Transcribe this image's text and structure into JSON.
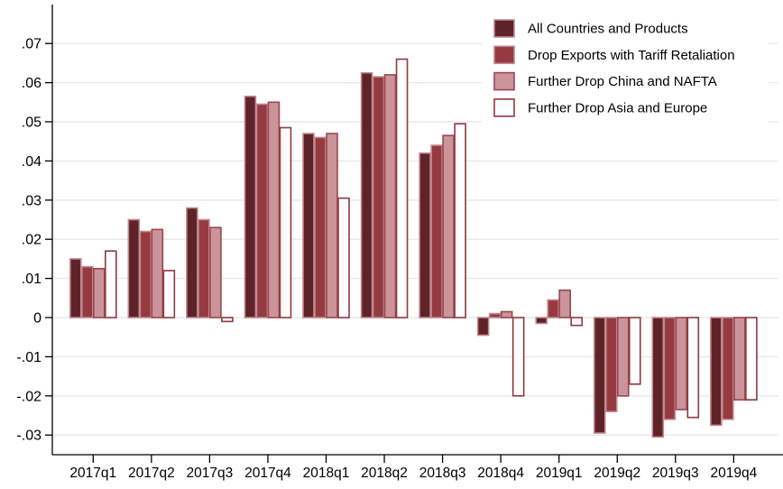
{
  "chart_data": {
    "type": "bar",
    "title": "",
    "xlabel": "",
    "ylabel": "",
    "categories": [
      "2017q1",
      "2017q2",
      "2017q3",
      "2017q4",
      "2018q1",
      "2018q2",
      "2018q3",
      "2018q4",
      "2019q1",
      "2019q2",
      "2019q3",
      "2019q4"
    ],
    "series": [
      {
        "name": "All Countries and Products",
        "fill": "#5e2328",
        "stroke": "#c08a90",
        "values": [
          0.015,
          0.025,
          0.028,
          0.0565,
          0.047,
          0.0625,
          0.042,
          -0.0045,
          -0.0015,
          -0.0295,
          -0.0305,
          -0.0275
        ]
      },
      {
        "name": "Drop Exports with Tariff Retaliation",
        "fill": "#963a41",
        "stroke": "#c08a90",
        "values": [
          0.013,
          0.022,
          0.025,
          0.0545,
          0.046,
          0.0615,
          0.044,
          0.001,
          0.0045,
          -0.024,
          -0.026,
          -0.026
        ]
      },
      {
        "name": "Further Drop China and NAFTA",
        "fill": "#ca949a",
        "stroke": "#9c454c",
        "values": [
          0.0125,
          0.0225,
          0.023,
          0.055,
          0.047,
          0.062,
          0.0465,
          0.0015,
          0.007,
          -0.02,
          -0.0235,
          -0.021
        ]
      },
      {
        "name": "Further Drop Asia and Europe",
        "fill": "#fefdfd",
        "stroke": "#8e3940",
        "values": [
          0.017,
          0.012,
          -0.001,
          0.0485,
          0.0305,
          0.066,
          0.0495,
          -0.02,
          -0.002,
          -0.017,
          -0.0255,
          -0.021
        ]
      }
    ],
    "yticks": [
      {
        "value": 0.07,
        "label": ".07"
      },
      {
        "value": 0.06,
        "label": ".06"
      },
      {
        "value": 0.05,
        "label": ".05"
      },
      {
        "value": 0.04,
        "label": ".04"
      },
      {
        "value": 0.03,
        "label": ".03"
      },
      {
        "value": 0.02,
        "label": ".02"
      },
      {
        "value": 0.01,
        "label": ".01"
      },
      {
        "value": 0,
        "label": "0"
      },
      {
        "value": -0.01,
        "label": "-.01"
      },
      {
        "value": -0.02,
        "label": "-.02"
      },
      {
        "value": -0.03,
        "label": "-.03"
      }
    ],
    "ylim": [
      -0.035,
      0.079
    ],
    "grid": true,
    "legend_position": "top-right",
    "colors": {
      "background": "#ffffff",
      "grid": "#e9e9e9",
      "axis": "#000000",
      "text": "#000000",
      "legend_background": "#ffffff"
    }
  }
}
